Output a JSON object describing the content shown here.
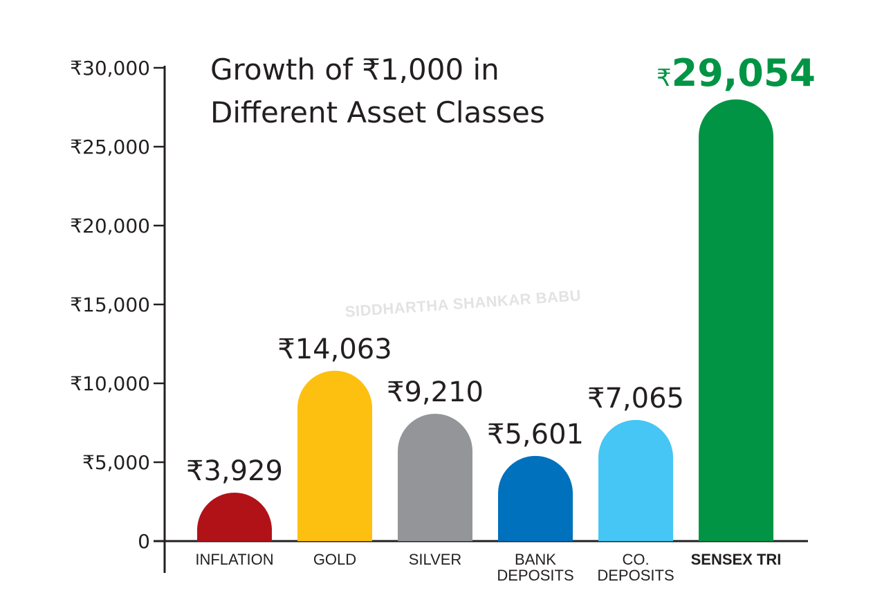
{
  "chart_data": {
    "type": "bar",
    "title_line1": "Growth of ₹1,000 in",
    "title_line2": "Different Asset Classes",
    "categories": [
      "INFLATION",
      "GOLD",
      "SILVER",
      "BANK DEPOSITS",
      "CO. DEPOSITS",
      "SENSEX TRI"
    ],
    "category_lines": [
      [
        "INFLATION"
      ],
      [
        "GOLD"
      ],
      [
        "SILVER"
      ],
      [
        "BANK",
        "DEPOSITS"
      ],
      [
        "CO.",
        "DEPOSITS"
      ],
      [
        "SENSEX TRI"
      ]
    ],
    "values": [
      3929,
      14063,
      9210,
      5601,
      7065,
      29054
    ],
    "value_labels": [
      "₹3,929",
      "₹14,063",
      "₹9,210",
      "₹5,601",
      "₹7,065",
      "29,054"
    ],
    "highlight_currency": "₹",
    "drawn_heights": [
      3070,
      10800,
      8070,
      5400,
      7680,
      28000
    ],
    "colors": [
      "#b01218",
      "#fdc010",
      "#939598",
      "#0071bc",
      "#45c6f5",
      "#009444"
    ],
    "highlight_color": "#009444",
    "ylim": [
      0,
      30000
    ],
    "yticks": [
      0,
      5000,
      10000,
      15000,
      20000,
      25000,
      30000
    ],
    "ytick_labels": [
      "0",
      "₹5,000",
      "₹10,000",
      "₹15,000",
      "₹20,000",
      "₹25,000",
      "₹30,000"
    ],
    "xlabel": "",
    "ylabel": "",
    "grid": false,
    "watermark": "SIDDHARTHA SHANKAR BABU"
  }
}
